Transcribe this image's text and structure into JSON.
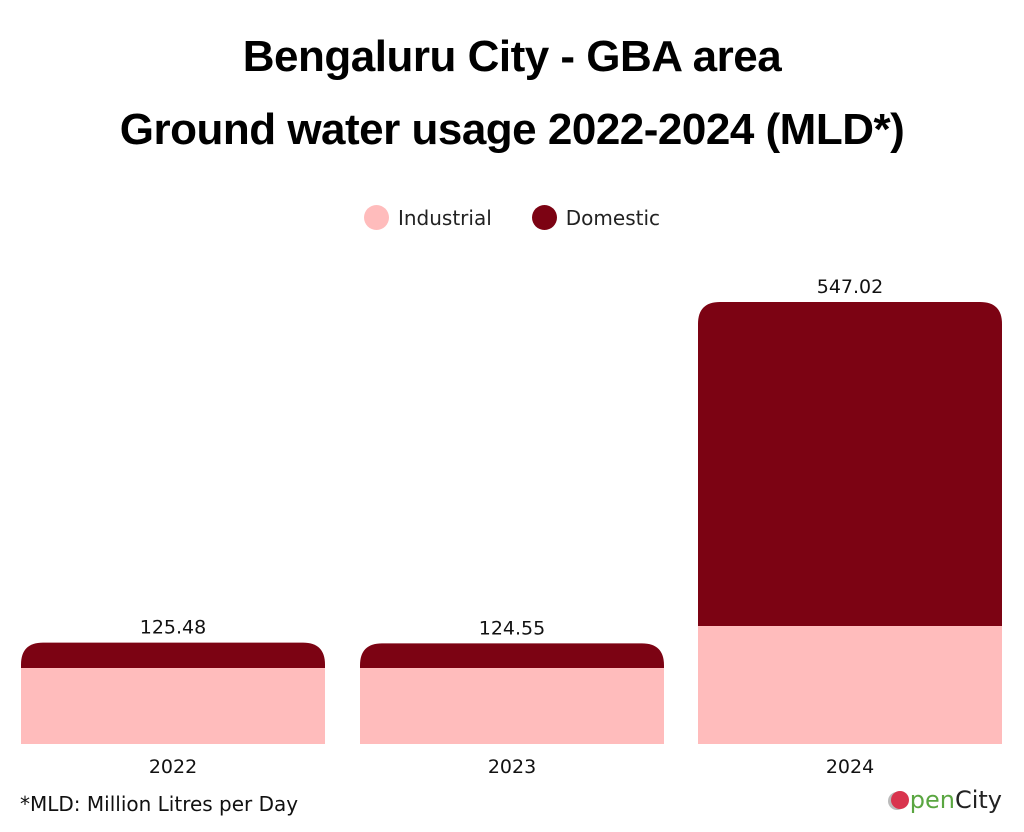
{
  "chart_data": {
    "type": "bar",
    "stacked": true,
    "title": "Bengaluru City - GBA area",
    "subtitle": "Ground water usage 2022-2024 (MLD*)",
    "xlabel": "",
    "ylabel": "",
    "categories": [
      "2022",
      "2023",
      "2024"
    ],
    "series": [
      {
        "name": "Industrial",
        "color": "#ffbcbc",
        "values": [
          94,
          94,
          146
        ]
      },
      {
        "name": "Domestic",
        "color": "#7c0313",
        "values": [
          31.48,
          30.55,
          401.02
        ]
      }
    ],
    "totals": [
      "125.48",
      "124.55",
      "547.02"
    ],
    "ylim": [
      0,
      560
    ],
    "grid": false,
    "legend_position": "top-center"
  },
  "footnote": "*MLD: Million Litres per Day",
  "logo": {
    "prefix": "pen",
    "suffix": "City"
  }
}
